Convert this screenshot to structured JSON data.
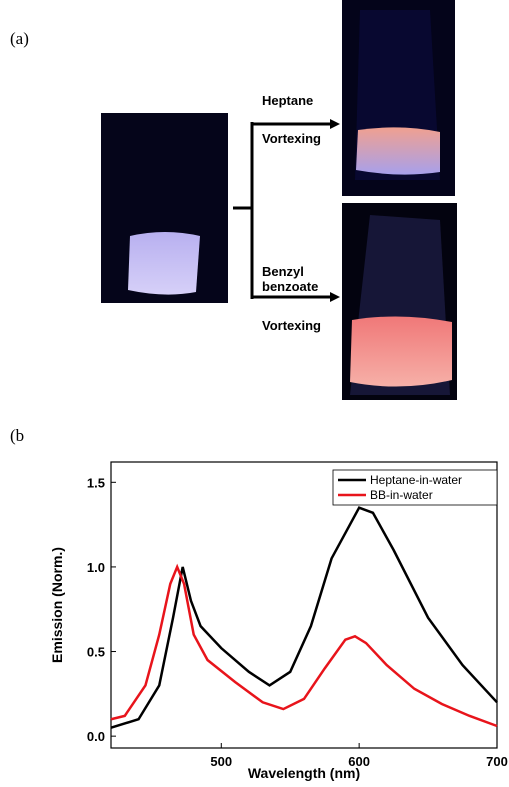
{
  "panel_a": {
    "label": "(a)",
    "step1": "Heptane",
    "step1b": "Vortexing",
    "step2a": "Benzyl",
    "step2b": "benzoate",
    "step2c": "Vortexing"
  },
  "chart_data": {
    "type": "line",
    "panel_label": "(b",
    "x_label": "Wavelength (nm)",
    "y_label": "Emission (Norm.)",
    "xlim": [
      420,
      700
    ],
    "ylim": [
      -0.07,
      1.62
    ],
    "xticks": [
      500,
      600,
      700
    ],
    "yticks": [
      {
        "value": 0,
        "label": "0.0"
      },
      0.5,
      {
        "value": 1,
        "label": "1.0"
      },
      1.5
    ],
    "legend": "top-right",
    "series": [
      {
        "name": "Heptane-in-water",
        "color": "#000000",
        "x": [
          420,
          440,
          455,
          465,
          472,
          478,
          485,
          500,
          520,
          535,
          550,
          565,
          580,
          600,
          610,
          625,
          650,
          675,
          700
        ],
        "values": [
          0.05,
          0.1,
          0.3,
          0.7,
          1.0,
          0.8,
          0.65,
          0.52,
          0.38,
          0.3,
          0.38,
          0.65,
          1.05,
          1.35,
          1.32,
          1.1,
          0.7,
          0.42,
          0.2
        ]
      },
      {
        "name": "BB-in-water",
        "color": "#e8141b",
        "x": [
          420,
          430,
          445,
          455,
          463,
          468,
          473,
          480,
          490,
          510,
          530,
          545,
          560,
          575,
          590,
          597,
          605,
          620,
          640,
          660,
          680,
          700
        ],
        "values": [
          0.1,
          0.12,
          0.3,
          0.6,
          0.9,
          1.0,
          0.9,
          0.6,
          0.45,
          0.32,
          0.2,
          0.16,
          0.22,
          0.4,
          0.57,
          0.59,
          0.55,
          0.42,
          0.28,
          0.19,
          0.12,
          0.06
        ]
      }
    ]
  }
}
